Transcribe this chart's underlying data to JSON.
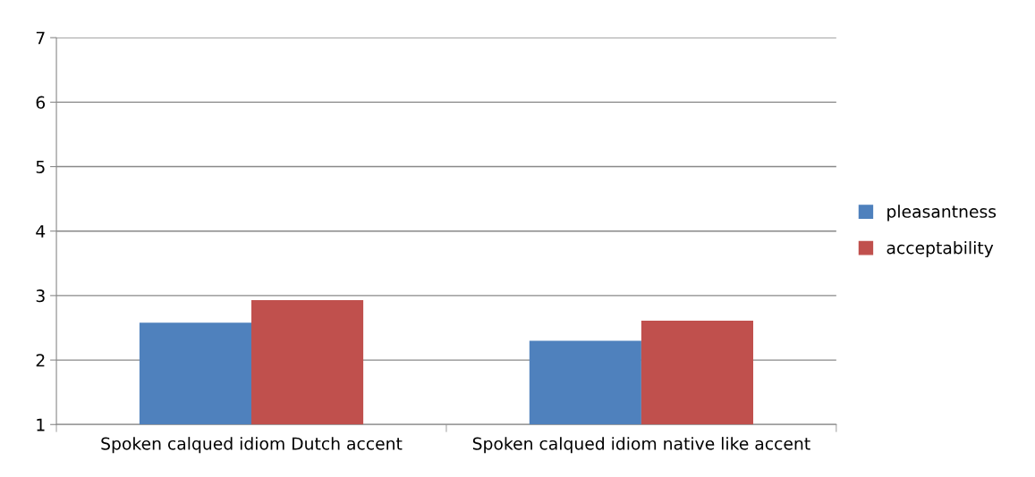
{
  "chart_data": {
    "type": "bar",
    "categories": [
      "Spoken calqued idiom Dutch accent",
      "Spoken calqued idiom native like accent"
    ],
    "series": [
      {
        "name": "pleasantness",
        "color": "#4f81bd",
        "values": [
          2.58,
          2.3
        ]
      },
      {
        "name": "acceptability",
        "color": "#c0504d",
        "values": [
          2.93,
          2.61
        ]
      }
    ],
    "ylim": [
      1,
      7
    ],
    "yticks": [
      1,
      2,
      3,
      4,
      5,
      6,
      7
    ],
    "grid": "y",
    "legend": "right"
  }
}
